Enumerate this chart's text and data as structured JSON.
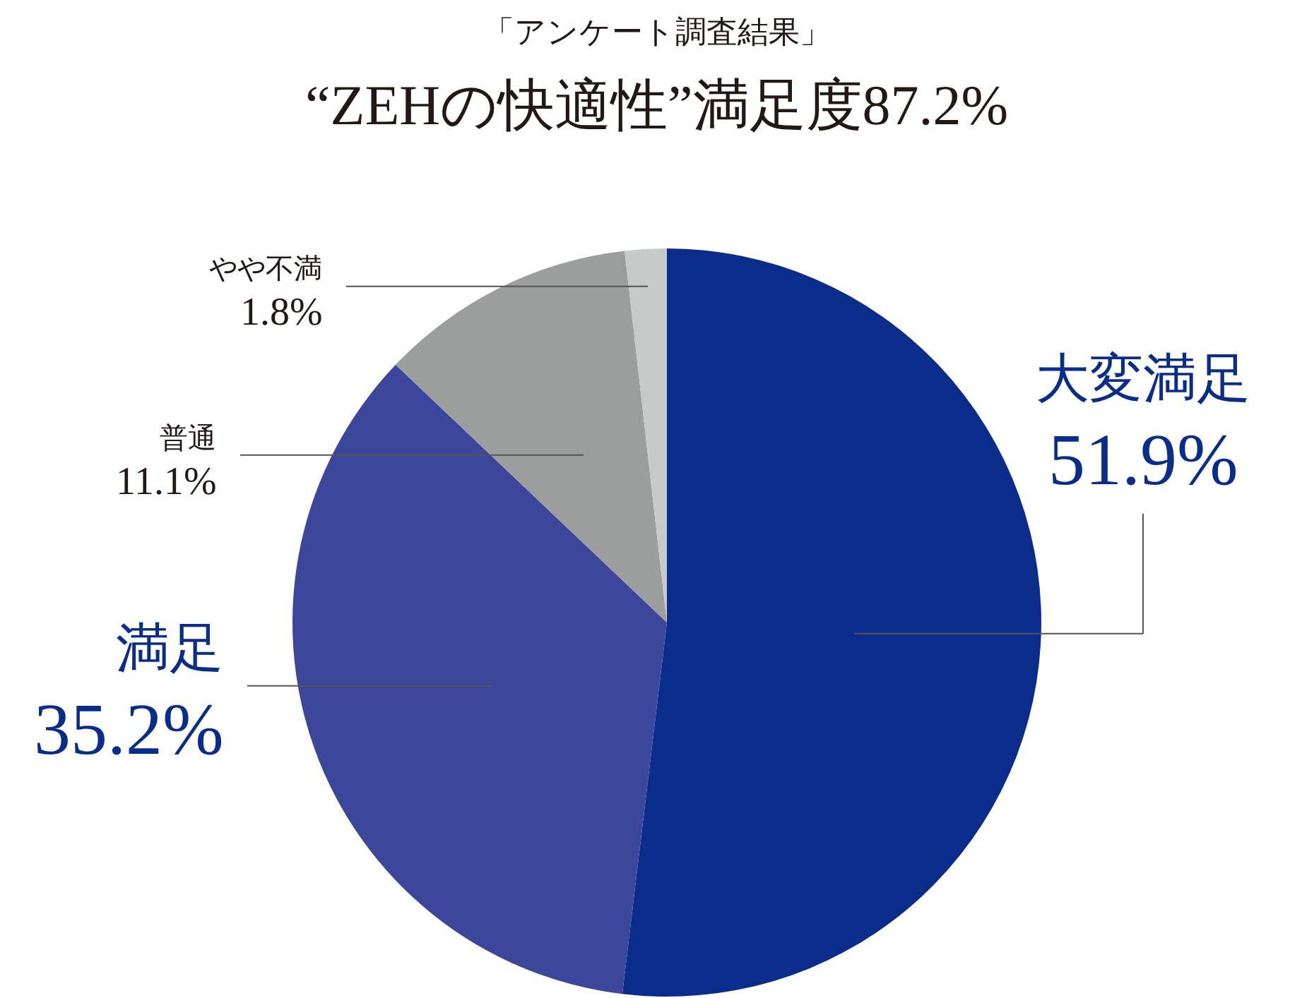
{
  "chart_data": {
    "type": "pie",
    "subtitle": "「アンケート調査結果」",
    "title": "“ZEHの快適性”満足度87.2%",
    "categories": [
      "大変満足",
      "満足",
      "普通",
      "やや不満"
    ],
    "values": [
      51.9,
      35.2,
      11.1,
      1.8
    ],
    "value_labels": [
      "51.9%",
      "35.2%",
      "11.1%",
      "1.8%"
    ],
    "colors": [
      "#0a2d8c",
      "#3c469a",
      "#9c9e9e",
      "#c8c9c9"
    ],
    "legend": false
  }
}
